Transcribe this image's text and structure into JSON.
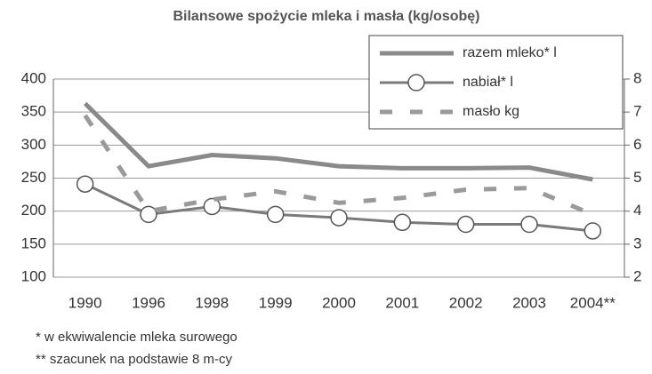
{
  "chart_data": {
    "type": "line",
    "title": "Bilansowe spożycie mleka i masła (kg/osobę)",
    "categories": [
      "1990",
      "1996",
      "1998",
      "1999",
      "2000",
      "2001",
      "2002",
      "2003",
      "2004**"
    ],
    "series": [
      {
        "name": "razem mleko* l",
        "color": "#8a8a8a",
        "values": [
          363,
          268,
          285,
          280,
          268,
          265,
          265,
          266,
          248
        ]
      },
      {
        "name": "nabiał* l",
        "color": "#7a7a7a",
        "values": [
          241,
          195,
          207,
          195,
          190,
          183,
          180,
          180,
          170
        ]
      },
      {
        "name": "masło kg",
        "color": "#9a9a9a",
        "axis": "y2",
        "values": [
          6.9,
          4.0,
          4.35,
          4.6,
          4.25,
          4.4,
          4.65,
          4.7,
          3.9
        ]
      }
    ],
    "ylim": [
      100,
      400
    ],
    "yticks": [
      100,
      150,
      200,
      250,
      300,
      350,
      400
    ],
    "y2lim": [
      2,
      8
    ],
    "y2ticks": [
      2,
      3,
      4,
      5,
      6,
      7,
      8
    ],
    "grid": true,
    "legend": "top-right",
    "notes": [
      "* w ekwiwalencie mleka surowego",
      "** szacunek na podstawie 8 m-cy"
    ]
  }
}
